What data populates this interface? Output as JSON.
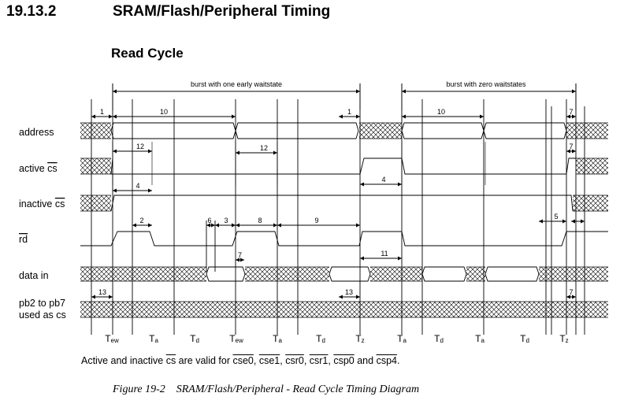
{
  "heading": {
    "number": "19.13.2",
    "title": "SRAM/Flash/Peripheral Timing"
  },
  "subheading": "Read Cycle",
  "diagram": {
    "bursts": [
      {
        "label": "burst with one early waitstate"
      },
      {
        "label": "burst with zero waitstates"
      }
    ],
    "signals": [
      {
        "id": "address",
        "label": "address",
        "label_prefix": "",
        "label_overline": ""
      },
      {
        "id": "active_cs",
        "label": "",
        "label_prefix": "active ",
        "label_overline": "cs"
      },
      {
        "id": "inactive_cs",
        "label": "",
        "label_prefix": "inactive ",
        "label_overline": "cs"
      },
      {
        "id": "rd",
        "label": "",
        "label_prefix": "",
        "label_overline": "rd"
      },
      {
        "id": "data_in",
        "label": "data in",
        "label_prefix": "",
        "label_overline": ""
      },
      {
        "id": "pb",
        "label": "pb2 to pb7",
        "label_line2": "used as cs"
      }
    ],
    "timing_params": [
      "1",
      "10",
      "1",
      "10",
      "7",
      "12",
      "12",
      "7",
      "4",
      "4",
      "2",
      "6",
      "3",
      "8",
      "9",
      "5",
      "7",
      "11",
      "13",
      "13",
      "7"
    ],
    "phases": [
      {
        "main": "T",
        "sub": "ew"
      },
      {
        "main": "T",
        "sub": "a"
      },
      {
        "main": "T",
        "sub": "d"
      },
      {
        "main": "T",
        "sub": "ew"
      },
      {
        "main": "T",
        "sub": "a"
      },
      {
        "main": "T",
        "sub": "d"
      },
      {
        "main": "T",
        "sub": "z"
      },
      {
        "main": "T",
        "sub": "a"
      },
      {
        "main": "T",
        "sub": "d"
      },
      {
        "main": "T",
        "sub": "a"
      },
      {
        "main": "T",
        "sub": "d"
      },
      {
        "main": "T",
        "sub": "z"
      }
    ]
  },
  "footnote": {
    "pre": "Active and inactive ",
    "cs": "cs",
    "mid": " are valid for ",
    "signals": [
      "cse0",
      "cse1",
      "csr0",
      "csr1",
      "csp0",
      "csp4"
    ],
    "sep": ", ",
    "and": " and ",
    "end": "."
  },
  "caption": {
    "figure": "Figure 19-2",
    "title": "SRAM/Flash/Peripheral - Read Cycle Timing Diagram"
  }
}
